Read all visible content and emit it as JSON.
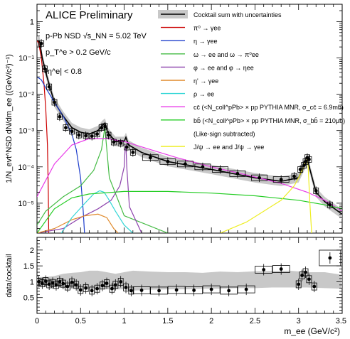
{
  "chart_data": [
    {
      "type": "line",
      "title": "ALICE Preliminary",
      "annotations": [
        "p-Pb NSD √s_NN = 5.02 TeV",
        "p_T^e > 0.2 GeV/c",
        "|η^e| < 0.8"
      ],
      "ylabel": "1/N_evt^NSD dN/dm_ee ((GeV/c²)⁻¹)",
      "xlim": [
        0,
        3.5
      ],
      "ylim": [
        1.5e-06,
        3
      ],
      "yscale": "log",
      "legend_position": "top-right",
      "x_ticks": [
        "0",
        "0.5",
        "1",
        "1.5",
        "2",
        "2.5",
        "3",
        "3.5"
      ],
      "y_ticks": [
        "10⁻⁵",
        "10⁻⁴",
        "10⁻³",
        "10⁻²",
        "10⁻¹",
        "1"
      ],
      "legend": [
        {
          "label": "Cocktail sum with uncertainties",
          "color": "#000000"
        },
        {
          "label": "π⁰ → γee",
          "color": "#cc0000"
        },
        {
          "label": "η → γee",
          "color": "#1f3fcc"
        },
        {
          "label": "ω → ee and ω → π⁰ee",
          "color": "#44bb44"
        },
        {
          "label": "φ → ee and φ → ηee",
          "color": "#8e44ad"
        },
        {
          "label": "η' → γee",
          "color": "#e08a2c"
        },
        {
          "label": "ρ → ee",
          "color": "#33d6d6"
        },
        {
          "label": "cc̄ (<N_coll^pPb> × pp PYTHIA MNR, σ_cc̄ = 6.9mb)",
          "color": "#e83ae8"
        },
        {
          "label": "bb̄ (<N_coll^pPb> × pp PYTHIA MNR, σ_bb̄ = 210μb)",
          "color": "#22cc22"
        },
        {
          "label": "(Like-sign subtracted)",
          "color": ""
        },
        {
          "label": "J/ψ → ee and J/ψ → γee",
          "color": "#eeee22"
        }
      ],
      "data_points": {
        "x": [
          0.05,
          0.09,
          0.14,
          0.2,
          0.26,
          0.33,
          0.4,
          0.48,
          0.56,
          0.63,
          0.69,
          0.74,
          0.78,
          0.82,
          0.88,
          0.96,
          1.03,
          1.1,
          1.3,
          1.5,
          1.7,
          1.9,
          2.1,
          2.3,
          2.55,
          2.8,
          2.95,
          3.02,
          3.06,
          3.08,
          3.1,
          3.12,
          3.2,
          3.36
        ],
        "y": [
          0.25,
          0.05,
          0.016,
          0.006,
          0.0024,
          0.0012,
          0.00095,
          0.00075,
          0.00072,
          0.0007,
          0.0008,
          0.0012,
          0.0013,
          0.00075,
          0.00048,
          0.00045,
          0.00035,
          0.00025,
          0.00018,
          0.00014,
          0.00012,
          0.0001,
          8.5e-05,
          6.5e-05,
          5e-05,
          4.5e-05,
          5.5e-05,
          8.5e-05,
          0.00011,
          0.00014,
          0.00018,
          0.00016,
          2.2e-05,
          9e-06
        ]
      },
      "series": [
        {
          "name": "Cocktail sum",
          "x": [
            0.0,
            0.03,
            0.06,
            0.1,
            0.15,
            0.2,
            0.3,
            0.4,
            0.5,
            0.6,
            0.7,
            0.75,
            0.78,
            0.81,
            0.9,
            1.0,
            1.02,
            1.05,
            1.2,
            1.5,
            2.0,
            2.5,
            2.8,
            3.0,
            3.05,
            3.1,
            3.2,
            3.3,
            3.5
          ],
          "values": [
            0.3,
            0.28,
            0.1,
            0.04,
            0.015,
            0.006,
            0.0025,
            0.0012,
            0.0009,
            0.0008,
            0.001,
            0.0014,
            0.0016,
            0.0009,
            0.0005,
            0.0005,
            0.00065,
            0.0004,
            0.00025,
            0.00014,
            8.5e-05,
            5e-05,
            4e-05,
            5e-05,
            9e-05,
            0.00016,
            2e-05,
            1.1e-05,
            5e-06
          ]
        },
        {
          "name": "π⁰",
          "x": [
            0.0,
            0.02,
            0.05,
            0.08,
            0.1,
            0.12,
            0.13,
            0.135
          ],
          "values": [
            0.3,
            0.25,
            0.1,
            0.02,
            0.004,
            0.0004,
            2e-05,
            1.5e-06
          ]
        },
        {
          "name": "η",
          "x": [
            0.0,
            0.05,
            0.1,
            0.2,
            0.3,
            0.4,
            0.45,
            0.5,
            0.53,
            0.545
          ],
          "values": [
            0.03,
            0.025,
            0.015,
            0.006,
            0.0025,
            0.0008,
            0.0003,
            5e-05,
            6e-06,
            1.5e-06
          ]
        },
        {
          "name": "ω",
          "x": [
            0.0,
            0.1,
            0.3,
            0.5,
            0.65,
            0.74,
            0.77,
            0.78,
            0.79,
            0.83,
            1.0,
            1.5
          ],
          "values": [
            2.5e-06,
            6e-06,
            1.5e-05,
            3e-05,
            8e-05,
            0.0003,
            0.0009,
            0.0012,
            0.0006,
            5e-05,
            4.5e-06,
            1.5e-06
          ]
        },
        {
          "name": "φ",
          "x": [
            0.0,
            0.3,
            0.5,
            0.7,
            0.85,
            0.95,
            1.0,
            1.01,
            1.02,
            1.03,
            1.06,
            1.2
          ],
          "values": [
            1.5e-06,
            2e-06,
            4e-06,
            7e-06,
            1.2e-05,
            3e-05,
            0.0001,
            0.0003,
            0.0004,
            0.0001,
            8e-06,
            1.5e-06
          ]
        },
        {
          "name": "η'",
          "x": [
            0.0,
            0.2,
            0.4,
            0.55,
            0.7,
            0.8,
            0.88,
            0.93
          ],
          "values": [
            1.5e-06,
            2e-06,
            3.5e-06,
            4.5e-06,
            5e-06,
            4e-06,
            2e-06,
            1.5e-06
          ]
        },
        {
          "name": "ρ",
          "x": [
            0.28,
            0.4,
            0.55,
            0.65,
            0.72,
            0.77,
            0.82,
            0.9,
            1.0,
            1.1,
            1.2
          ],
          "values": [
            1.5e-06,
            4e-06,
            1e-05,
            1.8e-05,
            2.2e-05,
            2e-05,
            1.3e-05,
            6e-06,
            2.5e-06,
            1.5e-06,
            1.2e-06
          ]
        },
        {
          "name": "cc̄",
          "x": [
            0.0,
            0.2,
            0.4,
            0.6,
            0.8,
            1.0,
            1.3,
            1.6,
            2.0,
            2.4,
            2.8,
            3.1,
            3.3,
            3.5
          ],
          "values": [
            1.5e-05,
            0.00012,
            0.0004,
            0.0006,
            0.0006,
            0.0005,
            0.0003,
            0.00018,
            0.0001,
            6e-05,
            3.5e-05,
            2e-05,
            1.2e-05,
            6e-06
          ]
        },
        {
          "name": "bb̄",
          "x": [
            0.0,
            0.2,
            0.4,
            0.6,
            1.0,
            1.5,
            2.0,
            2.5,
            3.0,
            3.3,
            3.5
          ],
          "values": [
            1.5e-06,
            7e-06,
            1.4e-05,
            1.8e-05,
            2.1e-05,
            2.1e-05,
            1.9e-05,
            1.6e-05,
            1.2e-05,
            9e-06,
            7e-06
          ]
        },
        {
          "name": "J/ψ",
          "x": [
            2.1,
            2.4,
            2.6,
            2.8,
            2.95,
            3.0,
            3.05,
            3.08,
            3.1,
            3.11,
            3.13,
            3.15
          ],
          "values": [
            1.5e-06,
            3e-06,
            6e-06,
            1.2e-05,
            3e-05,
            5e-05,
            9e-05,
            0.00014,
            0.00017,
            0.0001,
            1e-05,
            1.5e-06
          ]
        }
      ]
    },
    {
      "type": "scatter",
      "ylabel": "data/cocktail",
      "xlabel": "m_ee (GeV/c²)",
      "xlim": [
        0,
        3.5
      ],
      "ylim": [
        0,
        2.4
      ],
      "x_ticks": [
        "0",
        "0.5",
        "1",
        "1.5",
        "2",
        "2.5",
        "3",
        "3.5"
      ],
      "y_ticks": [
        "0.5",
        "1",
        "1.5",
        "2"
      ],
      "x": [
        0.02,
        0.06,
        0.1,
        0.14,
        0.18,
        0.22,
        0.26,
        0.3,
        0.35,
        0.4,
        0.45,
        0.5,
        0.56,
        0.63,
        0.69,
        0.75,
        0.8,
        0.86,
        0.9,
        0.96,
        1.02,
        1.08,
        1.2,
        1.4,
        1.6,
        1.8,
        2.0,
        2.2,
        2.4,
        2.6,
        2.8,
        3.0,
        3.04,
        3.08,
        3.12,
        3.18,
        3.36
      ],
      "values": [
        1.0,
        0.95,
        1.02,
        0.92,
        0.96,
        0.9,
        1.0,
        0.94,
        0.85,
        0.98,
        0.9,
        0.74,
        0.8,
        0.72,
        0.78,
        0.88,
        0.95,
        0.78,
        0.9,
        1.0,
        0.82,
        0.72,
        0.73,
        0.72,
        0.74,
        0.73,
        0.76,
        0.72,
        0.76,
        1.38,
        1.4,
        0.92,
        1.2,
        1.3,
        1.08,
        0.85,
        1.75
      ],
      "band_upper": [
        1.15,
        1.15,
        1.18,
        1.25,
        1.28,
        1.3,
        1.35,
        1.35,
        1.3,
        1.25,
        1.3,
        1.35,
        1.32,
        1.3,
        1.3,
        1.28,
        1.32,
        1.3,
        1.33,
        1.34,
        1.35,
        1.3,
        1.3,
        1.22
      ],
      "band_lower": [
        0.88,
        0.86,
        0.84,
        0.8,
        0.78,
        0.78,
        0.77,
        0.76,
        0.76,
        0.76,
        0.76,
        0.72,
        0.75,
        0.76,
        0.76,
        0.78,
        0.78,
        0.8,
        0.8,
        0.82,
        0.82,
        0.82,
        0.8,
        0.78
      ],
      "band_x": [
        0.0,
        0.1,
        0.2,
        0.3,
        0.4,
        0.5,
        0.6,
        0.7,
        0.8,
        0.9,
        1.0,
        1.1,
        1.3,
        1.5,
        1.7,
        1.9,
        2.1,
        2.3,
        2.5,
        2.7,
        2.9,
        3.1,
        3.3,
        3.5
      ]
    }
  ]
}
